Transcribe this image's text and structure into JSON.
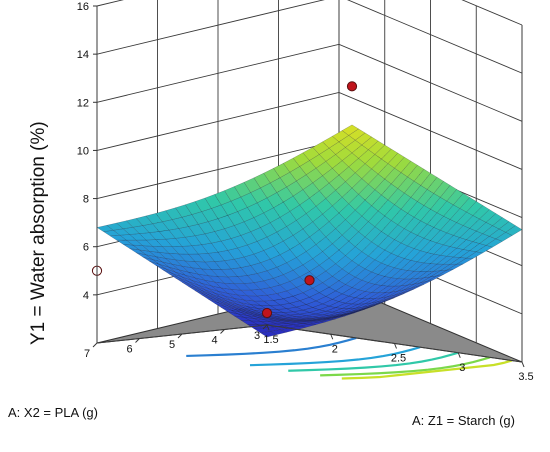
{
  "chart_data": {
    "type": "surface3d",
    "title": "",
    "ylabel": "Y1 = Water absorption (%)",
    "xlabel": "A: Z1 = Starch (g)",
    "zlabel": "A: X2 = PLA (g)",
    "y_ticks": [
      "4",
      "6",
      "8",
      "10",
      "12",
      "14",
      "16"
    ],
    "x_ticks": [
      "1.5",
      "2",
      "2.5",
      "3",
      "3.5"
    ],
    "z_ticks": [
      "3",
      "4",
      "5",
      "6",
      "7"
    ],
    "ylim": [
      2,
      16
    ],
    "xlim": [
      1.5,
      3.5
    ],
    "zlim": [
      3,
      7
    ],
    "grid": true,
    "colormap": [
      "#2a2fbf",
      "#2f5fd8",
      "#25a3d8",
      "#30c8a8",
      "#9fdb3c",
      "#e8e020"
    ],
    "surface_corners": [
      {
        "starch": 1.5,
        "pla": 3,
        "value": 1.5
      },
      {
        "starch": 1.5,
        "pla": 7,
        "value": 6.8
      },
      {
        "starch": 3.5,
        "pla": 3,
        "value": 7.5
      },
      {
        "starch": 3.5,
        "pla": 7,
        "value": 12.6
      }
    ],
    "design_points": [
      {
        "starch": 1.5,
        "pla": 7,
        "value": 5.0,
        "color": "#ffffff"
      },
      {
        "starch": 1.5,
        "pla": 3,
        "value": 2.5,
        "color": "#c0141c"
      },
      {
        "starch": 2.5,
        "pla": 5,
        "value": 5.0,
        "color": "#c0141c"
      },
      {
        "starch": 3.5,
        "pla": 7,
        "value": 14.2,
        "color": "#c0141c"
      }
    ]
  }
}
